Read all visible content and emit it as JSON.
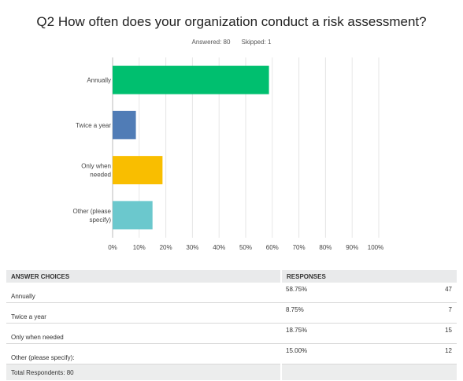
{
  "header": {
    "title": "Q2 How often does your organization conduct a risk assessment?",
    "answered": "Answered: 80",
    "skipped": "Skipped: 1"
  },
  "chart_data": {
    "type": "bar",
    "orientation": "horizontal",
    "categories": [
      "Annually",
      "Twice a year",
      "Only when needed",
      "Other (please specify)"
    ],
    "category_lines": [
      [
        "Annually"
      ],
      [
        "Twice a year"
      ],
      [
        "Only when",
        "needed"
      ],
      [
        "Other (please",
        "specify)"
      ]
    ],
    "values": [
      58.75,
      8.75,
      18.75,
      15.0
    ],
    "colors": [
      "#00bf6f",
      "#507cb6",
      "#f9be00",
      "#6bc8cd"
    ],
    "x_ticks": [
      "0%",
      "10%",
      "20%",
      "30%",
      "40%",
      "50%",
      "60%",
      "70%",
      "80%",
      "90%",
      "100%"
    ],
    "xlim": [
      0,
      100
    ],
    "grid": true
  },
  "table": {
    "headers": [
      "ANSWER CHOICES",
      "RESPONSES",
      ""
    ],
    "rows": [
      {
        "choice": "Annually",
        "percent": "58.75%",
        "count": "47"
      },
      {
        "choice": "Twice a year",
        "percent": "8.75%",
        "count": "7"
      },
      {
        "choice": "Only when needed",
        "percent": "18.75%",
        "count": "15"
      },
      {
        "choice": "Other (please specify):",
        "percent": "15.00%",
        "count": "12"
      }
    ],
    "total": "Total Respondents: 80"
  }
}
